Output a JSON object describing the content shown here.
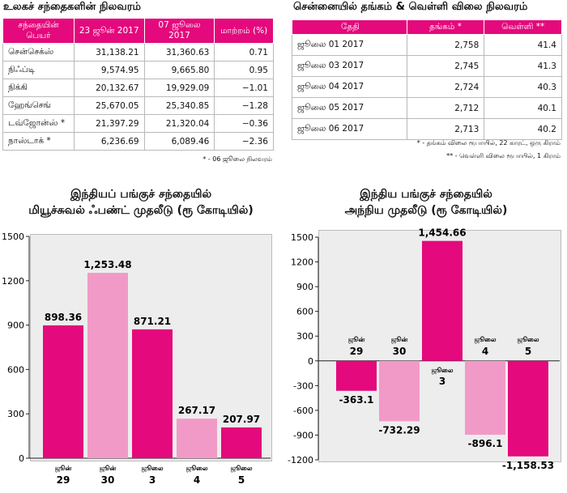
{
  "markets": {
    "title": "உலகச் சந்தைகளின் நிலவரம்",
    "headers": [
      "சந்தையின் பெயர்",
      "23 ஜூன் 2017",
      "07 ஜூலை 2017",
      "மாற்றம் (%)"
    ],
    "rows": [
      [
        "சென்செக்ஸ்",
        "31,138.21",
        "31,360.63",
        "0.71"
      ],
      [
        "நிஃப்டி",
        "9,574.95",
        "9,665.80",
        "0.95"
      ],
      [
        "நிக்கி",
        "20,132.67",
        "19,929.09",
        "−1.01"
      ],
      [
        "ஹேங்செங்",
        "25,670.05",
        "25,340.85",
        "−1.28"
      ],
      [
        "டவ்ஜோன்ஸ் *",
        "21,397.29",
        "21,320.04",
        "−0.36"
      ],
      [
        "நாஸ்டாக் *",
        "6,236.69",
        "6,089.46",
        "−2.36"
      ]
    ],
    "note": "* - 06 ஜூலை நிலவரம்"
  },
  "gold": {
    "title": "சென்னையில் தங்கம் & வெள்ளி விலை நிலவரம்",
    "headers": [
      "தேதி",
      "தங்கம் *",
      "வெள்ளி **"
    ],
    "rows": [
      [
        "ஜூலை 01 2017",
        "2,758",
        "41.4"
      ],
      [
        "ஜூலை 03 2017",
        "2,745",
        "41.3"
      ],
      [
        "ஜூலை 04 2017",
        "2,724",
        "40.3"
      ],
      [
        "ஜூலை 05 2017",
        "2,712",
        "40.1"
      ],
      [
        "ஜூலை 06 2017",
        "2,713",
        "40.2"
      ]
    ],
    "note1": "* - தங்கம் விலை ரூபாயில், 22 காரட், ஒரு கிராம்",
    "note2": "** - வெள்ளி விலை ரூபாயில், 1 கிராம்"
  },
  "colors": {
    "magenta": "#e4097c",
    "pink": "#f29ac7",
    "panel": "#ededed"
  },
  "chart_data": [
    {
      "type": "bar",
      "title": "இந்தியப் பங்குச் சந்தையில்",
      "subtitle": "மியூச்சுவல் ஃபண்ட் முதலீடு (ரூ கோடியில்)",
      "categories": [
        [
          "ஜூன்",
          "29"
        ],
        [
          "ஜூன்",
          "30"
        ],
        [
          "ஜூலை",
          "3"
        ],
        [
          "ஜூலை",
          "4"
        ],
        [
          "ஜூலை",
          "5"
        ]
      ],
      "values": [
        898.36,
        1253.48,
        871.21,
        267.17,
        207.97
      ],
      "value_labels": [
        "898.36",
        "1,253.48",
        "871.21",
        "267.17",
        "207.97"
      ],
      "bar_colors": [
        "#e4097c",
        "#f29ac7",
        "#e4097c",
        "#f29ac7",
        "#e4097c"
      ],
      "ylim": [
        0,
        1500
      ],
      "yticks": [
        0,
        300,
        600,
        900,
        1200,
        1500
      ],
      "ytick_labels": [
        "0",
        "300",
        "600",
        "900",
        "1200",
        "1500"
      ],
      "grid": false
    },
    {
      "type": "bar",
      "title": "இந்திய பங்குச் சந்தையில்",
      "subtitle": "அந்நிய முதலீடு (ரூ கோடியில்)",
      "categories": [
        [
          "ஜூன்",
          "29"
        ],
        [
          "ஜூன்",
          "30"
        ],
        [
          "ஜூலை",
          "3"
        ],
        [
          "ஜூலை",
          "4"
        ],
        [
          "ஜூலை",
          "5"
        ]
      ],
      "values": [
        -363.1,
        -732.29,
        1454.66,
        -896.1,
        -1158.53
      ],
      "value_labels": [
        "-363.1",
        "-732.29",
        "1,454.66",
        "-896.1",
        "-1,158.53"
      ],
      "bar_colors": [
        "#e4097c",
        "#f29ac7",
        "#e4097c",
        "#f29ac7",
        "#e4097c"
      ],
      "ylim": [
        -1200,
        1500
      ],
      "yticks": [
        -1200,
        -900,
        -600,
        -300,
        0,
        300,
        600,
        900,
        1200,
        1500
      ],
      "ytick_labels": [
        "-1200",
        "-900",
        "-600",
        "-300",
        "0",
        "300",
        "600",
        "900",
        "1200",
        "1500"
      ],
      "grid": false
    }
  ]
}
